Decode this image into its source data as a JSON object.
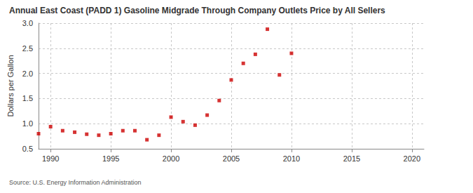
{
  "chart_data": {
    "type": "scatter",
    "title": "Annual East Coast (PADD 1) Gasoline Midgrade Through Company Outlets Price by All Sellers",
    "y_label": "Dollars per Gallon",
    "source": "Source: U.S. Energy Information Administration",
    "x": [
      1989,
      1990,
      1991,
      1992,
      1993,
      1994,
      1995,
      1996,
      1997,
      1998,
      1999,
      2000,
      2001,
      2002,
      2003,
      2004,
      2005,
      2006,
      2007,
      2008,
      2009,
      2010
    ],
    "values": [
      0.8,
      0.94,
      0.86,
      0.83,
      0.79,
      0.77,
      0.8,
      0.86,
      0.86,
      0.68,
      0.77,
      1.13,
      1.04,
      0.97,
      1.17,
      1.46,
      1.87,
      2.2,
      2.38,
      2.88,
      1.97,
      2.4
    ],
    "color": "#cc0000",
    "marker": "square",
    "xlim": [
      1989,
      2021
    ],
    "xticks": [
      1990,
      1995,
      2000,
      2005,
      2010,
      2015,
      2020
    ],
    "ylim": [
      0.5,
      3.0
    ],
    "yticks": [
      0.5,
      {
        "value": 1,
        "label": "1.0"
      },
      1.5,
      {
        "value": 2,
        "label": "2.0"
      },
      2.5,
      {
        "value": 3,
        "label": "3.0"
      }
    ],
    "grid": true
  }
}
